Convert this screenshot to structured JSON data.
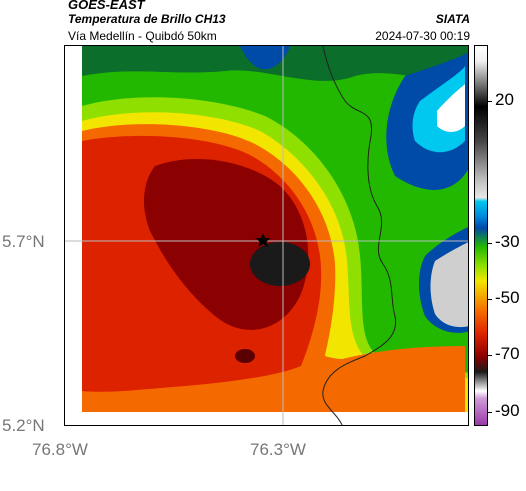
{
  "header": {
    "source": "GOES-EAST",
    "product": "Temperatura de Brillo CH13",
    "route": "Vía Medellín - Quibdó 50km",
    "agency": "SIATA",
    "datetime": "2024-07-30 00:19"
  },
  "map": {
    "lat_labels": [
      "5.7°N",
      "5.2°N"
    ],
    "lon_labels": [
      "76.8°W",
      "76.3°W"
    ],
    "marker_icon": "star-icon",
    "colors": {
      "very_cold": "#1a1a1a",
      "dark_red": "#8b0000",
      "red": "#dd2200",
      "orange": "#f56a00",
      "yellow": "#f2e600",
      "green": "#22b800",
      "light_green": "#8fe000",
      "dark_green": "#0b6e2a",
      "cyan": "#00c8ee",
      "blue": "#004aa8",
      "gray": "#cfcfcf"
    }
  },
  "colorbar": {
    "labels": [
      "20",
      "-30",
      "-50",
      "-70",
      "-90"
    ],
    "values": [
      20,
      -30,
      -50,
      -70,
      -90
    ],
    "range": [
      -95,
      40
    ],
    "unit_hint": "brightness temperature"
  }
}
